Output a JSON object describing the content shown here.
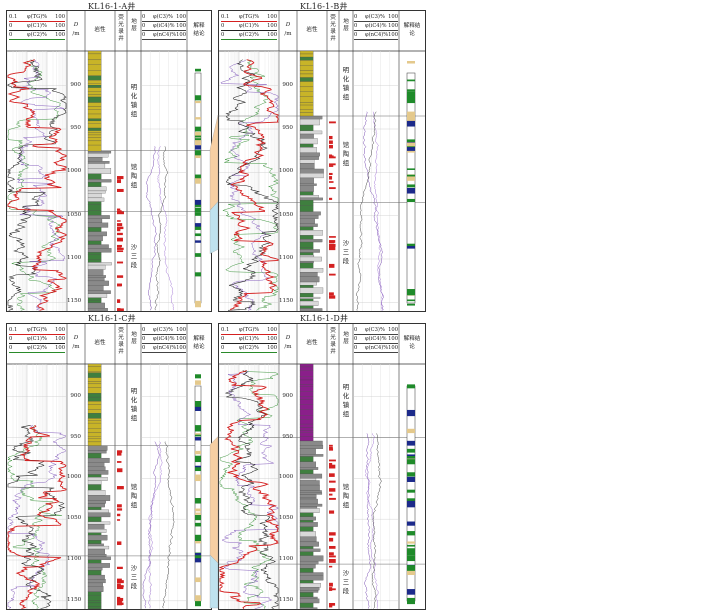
{
  "wells": [
    {
      "name": "KL16-1-A井",
      "curve_headers": [
        {
          "label": "φ(TG)%",
          "min": "0.1",
          "max": "100",
          "color": "#d42020"
        },
        {
          "label": "φ(C1)%",
          "min": "0",
          "max": "100",
          "color": "#222222"
        },
        {
          "label": "φ(C2)%",
          "min": "0",
          "max": "100",
          "color": "#2a8a2a"
        }
      ],
      "right_headers": [
        {
          "label": "φ(C3)%",
          "min": "0",
          "max": "100"
        },
        {
          "label": "φ(iC4)%",
          "min": "0",
          "max": "100"
        },
        {
          "label": "φ(nC4)%",
          "min": "0",
          "max": "100"
        }
      ],
      "depth_header": "D",
      "depth_unit": "/m",
      "lith_header": "岩性",
      "fluor_header": "荧光录井",
      "strat_header": "地层",
      "interp_header": "解释结论",
      "depth_ticks": [
        "900",
        "950",
        "1000",
        "1050",
        "1100",
        "1150"
      ],
      "strata": [
        {
          "name": "明化镇组",
          "from": 860,
          "to": 975
        },
        {
          "name": "馆陶组",
          "from": 975,
          "to": 1045
        },
        {
          "name": "沙三段",
          "from": 1045,
          "to": 1160
        }
      ]
    },
    {
      "name": "KL16-1-B井",
      "curve_headers": [
        {
          "label": "φ(TG)%",
          "min": "0.1",
          "max": "100",
          "color": "#d42020"
        },
        {
          "label": "φ(C1)%",
          "min": "0",
          "max": "100",
          "color": "#222222"
        },
        {
          "label": "φ(C2)%",
          "min": "0",
          "max": "100",
          "color": "#2a8a2a"
        }
      ],
      "right_headers": [
        {
          "label": "φ(C3)%",
          "min": "0",
          "max": "100"
        },
        {
          "label": "φ(iC4)%",
          "min": "0",
          "max": "100"
        },
        {
          "label": "φ(nC4)%",
          "min": "0",
          "max": "100"
        }
      ],
      "depth_header": "D",
      "depth_unit": "/m",
      "lith_header": "岩性",
      "fluor_header": "荧光录井",
      "strat_header": "地层",
      "interp_header": "解释结论",
      "depth_ticks": [
        "900",
        "950",
        "1000",
        "1050",
        "1100",
        "1150"
      ],
      "strata": [
        {
          "name": "明化镇组",
          "from": 860,
          "to": 935
        },
        {
          "name": "馆陶组",
          "from": 935,
          "to": 1035
        },
        {
          "name": "沙三段",
          "from": 1035,
          "to": 1160
        }
      ]
    },
    {
      "name": "KL16-1-C井",
      "curve_headers": [
        {
          "label": "φ(TG)%",
          "min": "0.1",
          "max": "100",
          "color": "#d42020"
        },
        {
          "label": "φ(C1)%",
          "min": "0",
          "max": "100",
          "color": "#222222"
        },
        {
          "label": "φ(C2)%",
          "min": "0",
          "max": "100",
          "color": "#2a8a2a"
        }
      ],
      "right_headers": [
        {
          "label": "φ(C3)%",
          "min": "0",
          "max": "100"
        },
        {
          "label": "φ(iC4)%",
          "min": "0",
          "max": "100"
        },
        {
          "label": "φ(nC4)%",
          "min": "0",
          "max": "100"
        }
      ],
      "depth_header": "D",
      "depth_unit": "/m",
      "lith_header": "岩性",
      "fluor_header": "荧光录井",
      "strat_header": "地层",
      "interp_header": "解释结论",
      "depth_ticks": [
        "900",
        "950",
        "1000",
        "1050",
        "1100",
        "1150"
      ],
      "strata": [
        {
          "name": "明化镇组",
          "from": 860,
          "to": 960
        },
        {
          "name": "馆陶组",
          "from": 960,
          "to": 1095
        },
        {
          "name": "沙三段",
          "from": 1095,
          "to": 1160
        }
      ]
    },
    {
      "name": "KL16-1-D井",
      "curve_headers": [
        {
          "label": "φ(TG)%",
          "min": "0.1",
          "max": "100",
          "color": "#d42020"
        },
        {
          "label": "φ(C1)%",
          "min": "0",
          "max": "100",
          "color": "#222222"
        },
        {
          "label": "φ(C2)%",
          "min": "0",
          "max": "100",
          "color": "#2a8a2a"
        }
      ],
      "right_headers": [
        {
          "label": "φ(C3)%",
          "min": "0",
          "max": "100"
        },
        {
          "label": "φ(iC4)%",
          "min": "0",
          "max": "100"
        },
        {
          "label": "φ(nC4)%",
          "min": "0",
          "max": "100"
        }
      ],
      "depth_header": "D",
      "depth_unit": "/m",
      "lith_header": "岩性",
      "fluor_header": "荧光录井",
      "strat_header": "地层",
      "interp_header": "解释结论",
      "depth_ticks": [
        "900",
        "950",
        "1000",
        "1050",
        "1100",
        "1150"
      ],
      "strata": [
        {
          "name": "明化镇组",
          "from": 860,
          "to": 950
        },
        {
          "name": "馆陶组",
          "from": 950,
          "to": 1105
        },
        {
          "name": "沙三段",
          "from": 1105,
          "to": 1160
        }
      ]
    }
  ],
  "colors": {
    "tg": "#d42020",
    "c1": "#222222",
    "c2": "#2a8a2a",
    "c3": "#7a4fb8",
    "fill_orange": "#f6cfa3",
    "fill_blue": "#bfe2ee",
    "lith_yellow": "#c8b428",
    "lith_green": "#3f7f3f",
    "lith_gray": "#8a8a8a",
    "lith_purple": "#8a1f8a",
    "interp_green": "#1f8a2a",
    "interp_blue": "#1c2a8a",
    "interp_tan": "#e4c98c"
  }
}
